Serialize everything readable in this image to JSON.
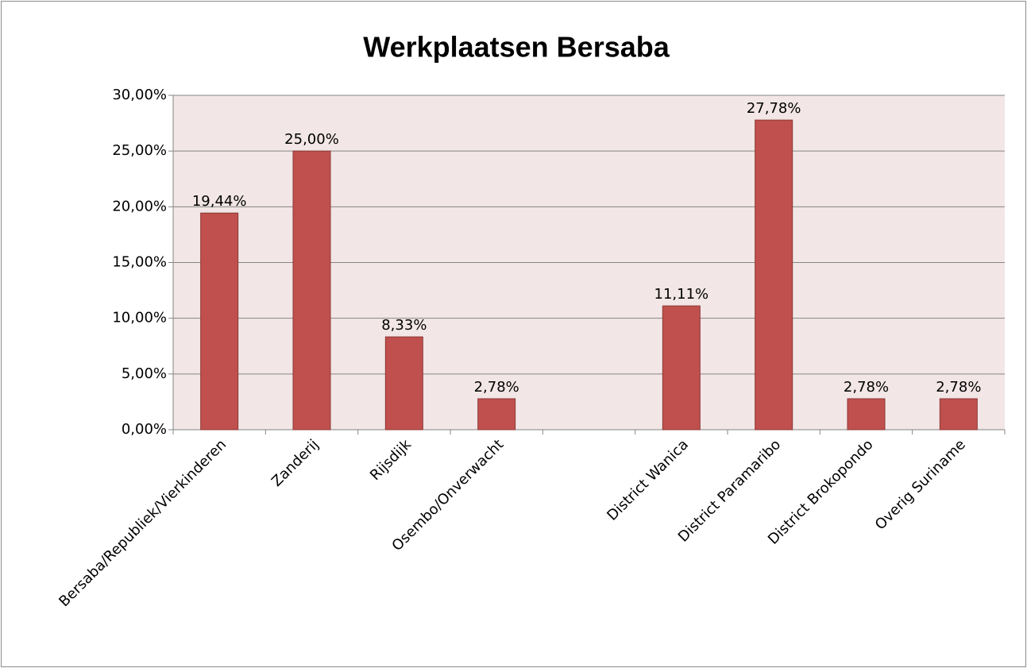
{
  "chart_data": {
    "type": "bar",
    "title": "Werkplaatsen Bersaba",
    "categories": [
      "Bersaba/Republiek/Vierkinderen",
      "Zanderij",
      "Rijsdijk",
      "Osembo/Onverwacht",
      null,
      "District Wanica",
      "District Paramaribo",
      "District Brokopondo",
      "Overig Suriname"
    ],
    "values": [
      19.44,
      25,
      8.33,
      2.78,
      null,
      11.11,
      27.78,
      2.78,
      2.78
    ],
    "value_labels": [
      "19,44%",
      "25,00%",
      "8,33%",
      "2,78%",
      null,
      "11,11%",
      "27,78%",
      "2,78%",
      "2,78%"
    ],
    "color": "#c0504d",
    "ylim": [
      0,
      30
    ],
    "yticks": [
      {
        "value": 0,
        "label": "0,00%"
      },
      {
        "value": 5,
        "label": "5,00%"
      },
      {
        "value": 10,
        "label": "10,00%"
      },
      {
        "value": 15,
        "label": "15,00%"
      },
      {
        "value": 20,
        "label": "20,00%"
      },
      {
        "value": 25,
        "label": "25,00%"
      },
      {
        "value": 30,
        "label": "30,00%"
      }
    ],
    "grid": true
  }
}
